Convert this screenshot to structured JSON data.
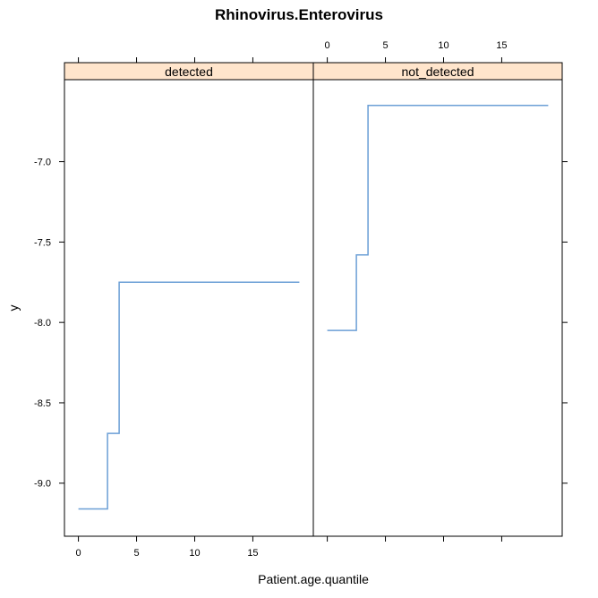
{
  "chart_data": {
    "type": "line",
    "title": "Rhinovirus.Enterovirus",
    "xlabel": "Patient.age.quantile",
    "ylabel": "y",
    "xlim": [
      -1.2,
      20.2
    ],
    "ylim": [
      -9.33,
      -6.49
    ],
    "x_ticks": [
      0,
      5,
      10,
      15
    ],
    "y_ticks": [
      -9.0,
      -8.5,
      -8.0,
      -7.5,
      -7.0
    ],
    "y_tick_labels": [
      "-9.0",
      "-8.5",
      "-8.0",
      "-7.5",
      "-7.0"
    ],
    "grid": false,
    "line_color": "#6b9fd6",
    "strip_color": "#ffe5cc",
    "panels": [
      {
        "strip": "detected",
        "x": [
          0,
          2.5,
          2.5,
          3.5,
          3.5,
          19
        ],
        "y": [
          -9.16,
          -9.16,
          -8.69,
          -8.69,
          -7.75,
          -7.75
        ]
      },
      {
        "strip": "not_detected",
        "x": [
          0,
          2.5,
          2.5,
          3.5,
          3.5,
          19
        ],
        "y": [
          -8.05,
          -8.05,
          -7.58,
          -7.58,
          -6.65,
          -6.65
        ]
      }
    ]
  }
}
